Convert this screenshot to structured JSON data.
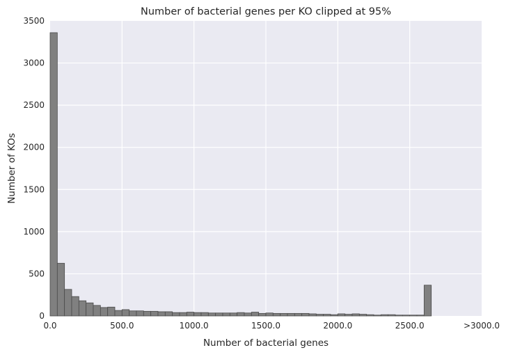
{
  "chart_data": {
    "type": "bar",
    "title": "Number of bacterial genes per KO clipped at 95%",
    "xlabel": "Number of bacterial genes",
    "ylabel": "Number of KOs",
    "xlim": [
      0,
      3000
    ],
    "ylim": [
      0,
      3500
    ],
    "grid": true,
    "x_ticks": [
      {
        "value": 0,
        "label": "0.0"
      },
      {
        "value": 500,
        "label": "500.0"
      },
      {
        "value": 1000,
        "label": "1000.0"
      },
      {
        "value": 1500,
        "label": "1500.0"
      },
      {
        "value": 2000,
        "label": "2000.0"
      },
      {
        "value": 2500,
        "label": "2500.0"
      },
      {
        "value": 3000,
        "label": ">3000.0"
      }
    ],
    "y_ticks": [
      {
        "value": 0,
        "label": "0"
      },
      {
        "value": 500,
        "label": "500"
      },
      {
        "value": 1000,
        "label": "1000"
      },
      {
        "value": 1500,
        "label": "1500"
      },
      {
        "value": 2000,
        "label": "2000"
      },
      {
        "value": 2500,
        "label": "2500"
      },
      {
        "value": 3000,
        "label": "3000"
      },
      {
        "value": 3500,
        "label": "3500"
      }
    ],
    "bin_width": 50,
    "bin_start": 0,
    "values": [
      3360,
      625,
      315,
      230,
      180,
      155,
      125,
      100,
      105,
      65,
      75,
      60,
      60,
      55,
      55,
      50,
      50,
      40,
      40,
      45,
      40,
      40,
      35,
      35,
      35,
      35,
      40,
      35,
      45,
      30,
      35,
      30,
      30,
      30,
      30,
      30,
      25,
      20,
      20,
      15,
      25,
      20,
      25,
      20,
      15,
      10,
      15,
      15,
      10,
      10,
      10,
      10,
      365
    ],
    "bar_color": "#808080",
    "bar_edge_color": "#4a4a4a",
    "background_color": "#eaeaf2",
    "grid_color": "#ffffff"
  }
}
